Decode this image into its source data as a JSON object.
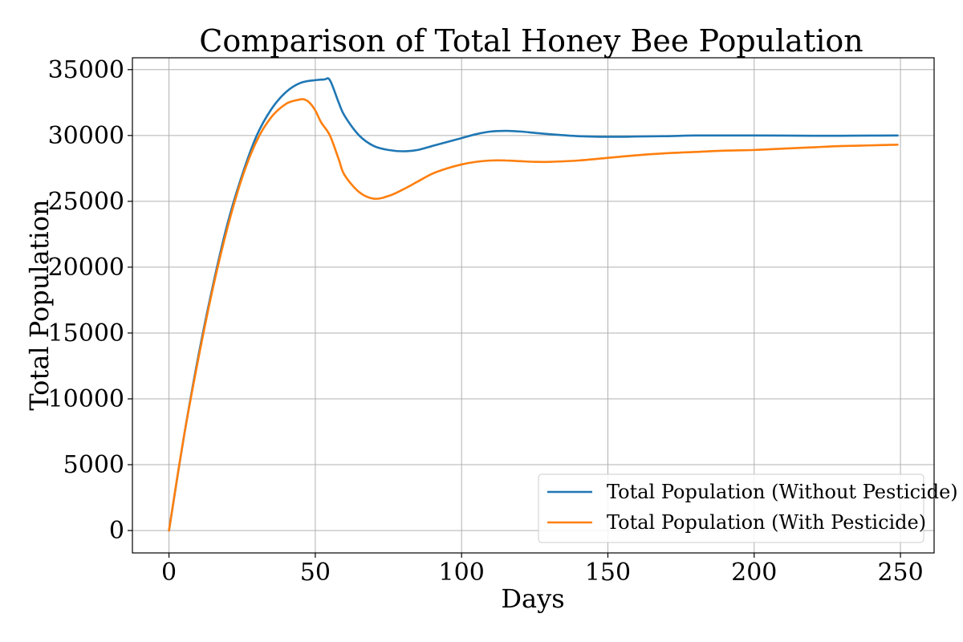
{
  "chart_data": {
    "type": "line",
    "title": "Comparison of Total Honey Bee Population",
    "xlabel": "Days",
    "ylabel": "Total Population",
    "xlim": [
      -12.5,
      261.5
    ],
    "ylim": [
      -1700,
      35900
    ],
    "xticks": [
      0,
      50,
      100,
      150,
      200,
      250
    ],
    "yticks": [
      0,
      5000,
      10000,
      15000,
      20000,
      25000,
      30000,
      35000
    ],
    "grid": true,
    "legend_position": "lower-right",
    "series": [
      {
        "name": "Total Population (Without Pesticide)",
        "color": "#1f77b4",
        "x": [
          0,
          5,
          10,
          15,
          20,
          25,
          30,
          35,
          40,
          45,
          50,
          53,
          55,
          58,
          60,
          65,
          70,
          75,
          80,
          85,
          90,
          95,
          100,
          105,
          110,
          115,
          120,
          125,
          130,
          140,
          150,
          160,
          170,
          180,
          190,
          200,
          210,
          220,
          230,
          240,
          249
        ],
        "y": [
          0,
          7000,
          13200,
          18600,
          23300,
          27000,
          30000,
          32000,
          33300,
          34000,
          34200,
          34250,
          34200,
          32500,
          31500,
          30000,
          29200,
          28900,
          28800,
          28900,
          29200,
          29500,
          29800,
          30100,
          30300,
          30350,
          30300,
          30200,
          30100,
          29950,
          29900,
          29920,
          29950,
          30000,
          30000,
          30000,
          29990,
          29980,
          29980,
          29990,
          30000
        ]
      },
      {
        "name": "Total Population (With Pesticide)",
        "color": "#ff7f0e",
        "x": [
          0,
          5,
          10,
          15,
          20,
          25,
          30,
          35,
          40,
          44,
          46,
          48,
          50,
          52,
          55,
          58,
          60,
          65,
          70,
          75,
          80,
          85,
          90,
          95,
          100,
          105,
          110,
          115,
          120,
          125,
          130,
          140,
          150,
          160,
          170,
          180,
          190,
          200,
          210,
          220,
          230,
          240,
          249
        ],
        "y": [
          0,
          7000,
          13000,
          18400,
          23000,
          26800,
          29600,
          31400,
          32400,
          32700,
          32750,
          32500,
          31900,
          31000,
          30000,
          28200,
          27000,
          25700,
          25200,
          25400,
          25900,
          26500,
          27100,
          27500,
          27800,
          28000,
          28100,
          28100,
          28050,
          28000,
          28000,
          28100,
          28300,
          28500,
          28650,
          28750,
          28850,
          28900,
          29000,
          29100,
          29200,
          29250,
          29300
        ]
      }
    ]
  }
}
